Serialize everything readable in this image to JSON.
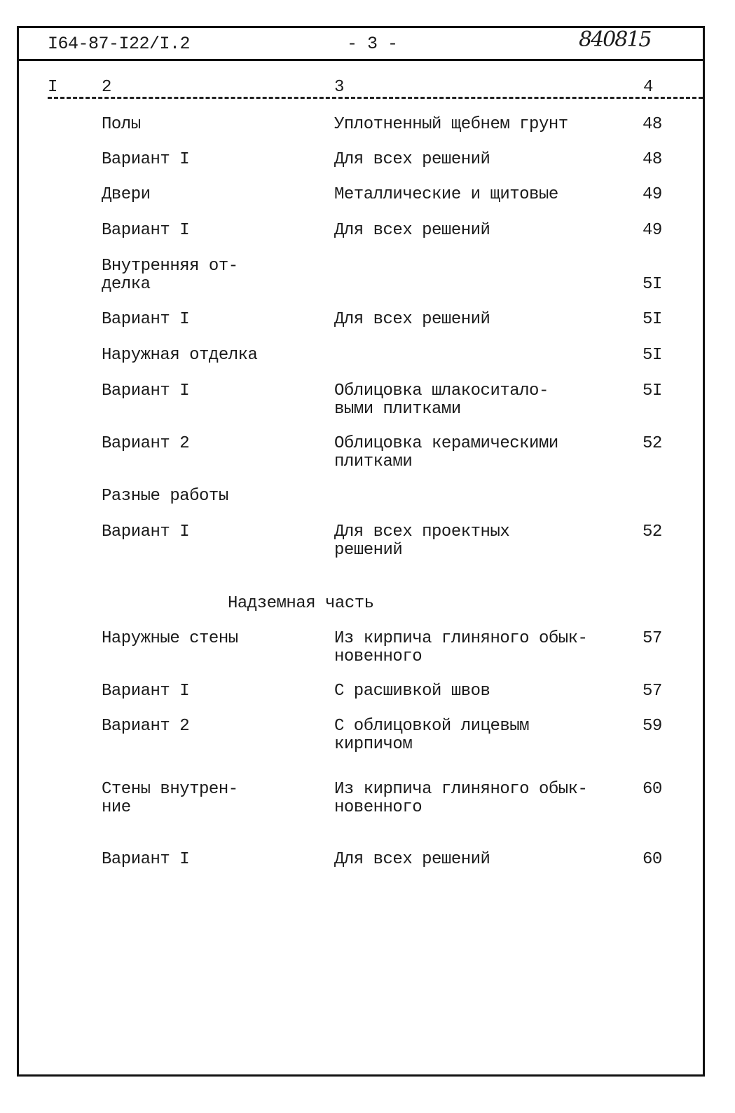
{
  "header": {
    "document_code": "I64-87-I22/I.2",
    "page_number": "- 3 -",
    "handwritten_number": "840815"
  },
  "columns": [
    "I",
    "2",
    "3",
    "4"
  ],
  "section_heading": "Надземная часть",
  "rows_before": [
    {
      "name": "Полы",
      "description": "Уплотненный щебнем грунт",
      "page": "48"
    },
    {
      "name": "Вариант I",
      "description": "Для всех решений",
      "page": "48"
    },
    {
      "name": "Двери",
      "description": "Металлические и щитовые",
      "page": "49"
    },
    {
      "name": "Вариант I",
      "description": "Для всех решений",
      "page": "49"
    },
    {
      "name": "Внутренняя от-\nделка",
      "description": "",
      "page": "5I"
    },
    {
      "name": "Вариант I",
      "description": "Для всех решений",
      "page": "5I"
    },
    {
      "name": "Наружная отделка",
      "description": "",
      "page": "5I"
    },
    {
      "name": "Вариант I",
      "description": "Облицовка шлакоситало-\nвыми плитками",
      "page": "5I"
    },
    {
      "name": "Вариант 2",
      "description": "Облицовка керамическими\nплитками",
      "page": "52"
    },
    {
      "name": "Разные работы",
      "description": "",
      "page": ""
    },
    {
      "name": "Вариант I",
      "description": "Для всех проектных\nрешений",
      "page": "52"
    }
  ],
  "rows_after": [
    {
      "name": "Наружные стены",
      "description": "Из кирпича глиняного обык-\nновенного",
      "page": "57"
    },
    {
      "name": "Вариант I",
      "description": "С расшивкой швов",
      "page": "57"
    },
    {
      "name": "Вариант 2",
      "description": "С облицовкой лицевым\nкирпичом",
      "page": "59"
    },
    {
      "name": "Стены внутрен-\nние",
      "description": "Из кирпича глиняного обык-\nновенного",
      "page": "60"
    },
    {
      "name": "Вариант I",
      "description": "Для всех решений",
      "page": "60"
    }
  ]
}
